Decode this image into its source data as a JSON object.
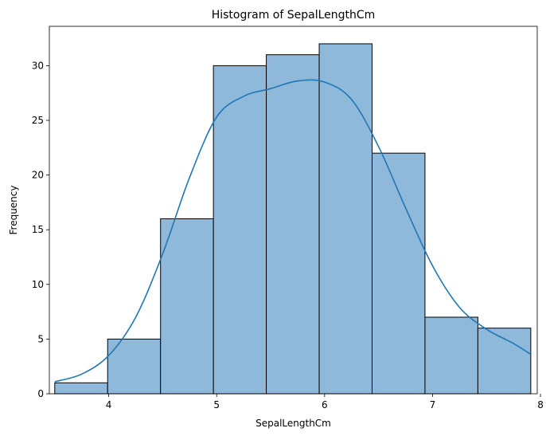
{
  "chart_data": {
    "type": "bar",
    "title": "Histogram of SepalLengthCm",
    "xlabel": "SepalLengthCm",
    "ylabel": "Frequency",
    "xlim": [
      3.45,
      7.97
    ],
    "ylim": [
      0,
      33.6
    ],
    "xticks": [
      4,
      5,
      6,
      7,
      8
    ],
    "yticks": [
      0,
      5,
      10,
      15,
      20,
      25,
      30
    ],
    "bins": [
      {
        "x0": 3.5,
        "x1": 3.99,
        "count": 1
      },
      {
        "x0": 3.99,
        "x1": 4.48,
        "count": 5
      },
      {
        "x0": 4.48,
        "x1": 4.97,
        "count": 16
      },
      {
        "x0": 4.97,
        "x1": 5.46,
        "count": 30
      },
      {
        "x0": 5.46,
        "x1": 5.95,
        "count": 31
      },
      {
        "x0": 5.95,
        "x1": 6.44,
        "count": 32
      },
      {
        "x0": 6.44,
        "x1": 6.93,
        "count": 22
      },
      {
        "x0": 6.93,
        "x1": 7.42,
        "count": 7
      },
      {
        "x0": 7.42,
        "x1": 7.91,
        "count": 6
      }
    ],
    "kde": {
      "x": [
        3.5,
        3.75,
        4.0,
        4.25,
        4.5,
        4.75,
        5.0,
        5.25,
        5.5,
        5.75,
        6.0,
        6.25,
        6.5,
        6.75,
        7.0,
        7.25,
        7.5,
        7.75,
        7.91
      ],
      "y": [
        1.1,
        1.8,
        3.5,
        7.0,
        12.8,
        19.8,
        25.3,
        27.2,
        27.9,
        28.6,
        28.5,
        26.9,
        22.6,
        17.0,
        11.7,
        7.9,
        5.9,
        4.6,
        3.6
      ]
    },
    "colors": {
      "bar_fill": "#8fb9db",
      "bar_edge": "#000000",
      "kde_line": "#1f77b4"
    },
    "grid": false
  }
}
